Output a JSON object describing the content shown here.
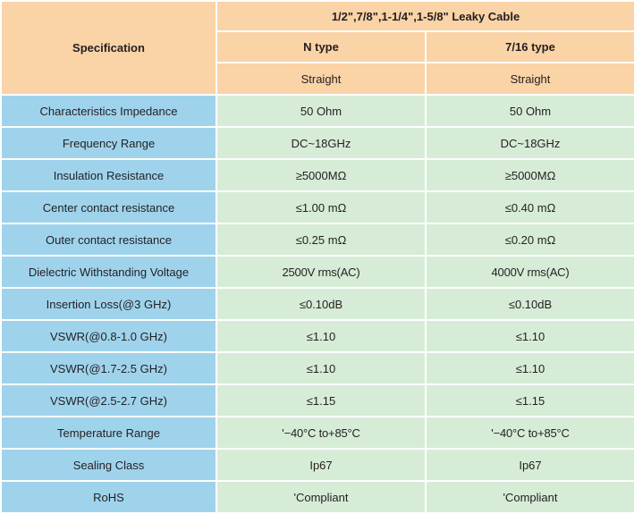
{
  "header": {
    "spec_label": "Specification",
    "title": "1/2\",7/8\",1-1/4\",1-5/8\" Leaky Cable",
    "columns": [
      {
        "type": "N type",
        "form": "Straight"
      },
      {
        "type": "7/16 type",
        "form": "Straight"
      }
    ]
  },
  "rows": [
    {
      "label": "Characteristics Impedance",
      "v1": "50 Ohm",
      "v2": "50 Ohm"
    },
    {
      "label": "Frequency Range",
      "v1": "DC~18GHz",
      "v2": "DC~18GHz"
    },
    {
      "label": "Insulation Resistance",
      "v1": "≥5000MΩ",
      "v2": "≥5000MΩ"
    },
    {
      "label": "Center contact resistance",
      "v1": "≤1.00 mΩ",
      "v2": "≤0.40 mΩ"
    },
    {
      "label": "Outer contact resistance",
      "v1": "≤0.25 mΩ",
      "v2": "≤0.20 mΩ"
    },
    {
      "label": "Dielectric Withstanding Voltage",
      "v1": "2500V rms(AC)",
      "v2": "4000V rms(AC)"
    },
    {
      "label": "Insertion Loss(@3 GHz)",
      "v1": "≤0.10dB",
      "v2": "≤0.10dB"
    },
    {
      "label": "VSWR(@0.8-1.0 GHz)",
      "v1": "≤1.10",
      "v2": "≤1.10"
    },
    {
      "label": "VSWR(@1.7-2.5 GHz)",
      "v1": "≤1.10",
      "v2": "≤1.10"
    },
    {
      "label": "VSWR(@2.5-2.7 GHz)",
      "v1": "≤1.15",
      "v2": "≤1.15"
    },
    {
      "label": "Temperature Range",
      "v1": "'−40°C to+85°C",
      "v2": "'−40°C to+85°C"
    },
    {
      "label": "Sealing Class",
      "v1": "Ip67",
      "v2": "Ip67"
    },
    {
      "label": "RoHS",
      "v1": "'Compliant",
      "v2": "'Compliant"
    }
  ],
  "colors": {
    "header_bg": "#fad3a6",
    "label_bg": "#9fd3ec",
    "value_bg": "#d6ecd6",
    "border": "#ffffff"
  }
}
